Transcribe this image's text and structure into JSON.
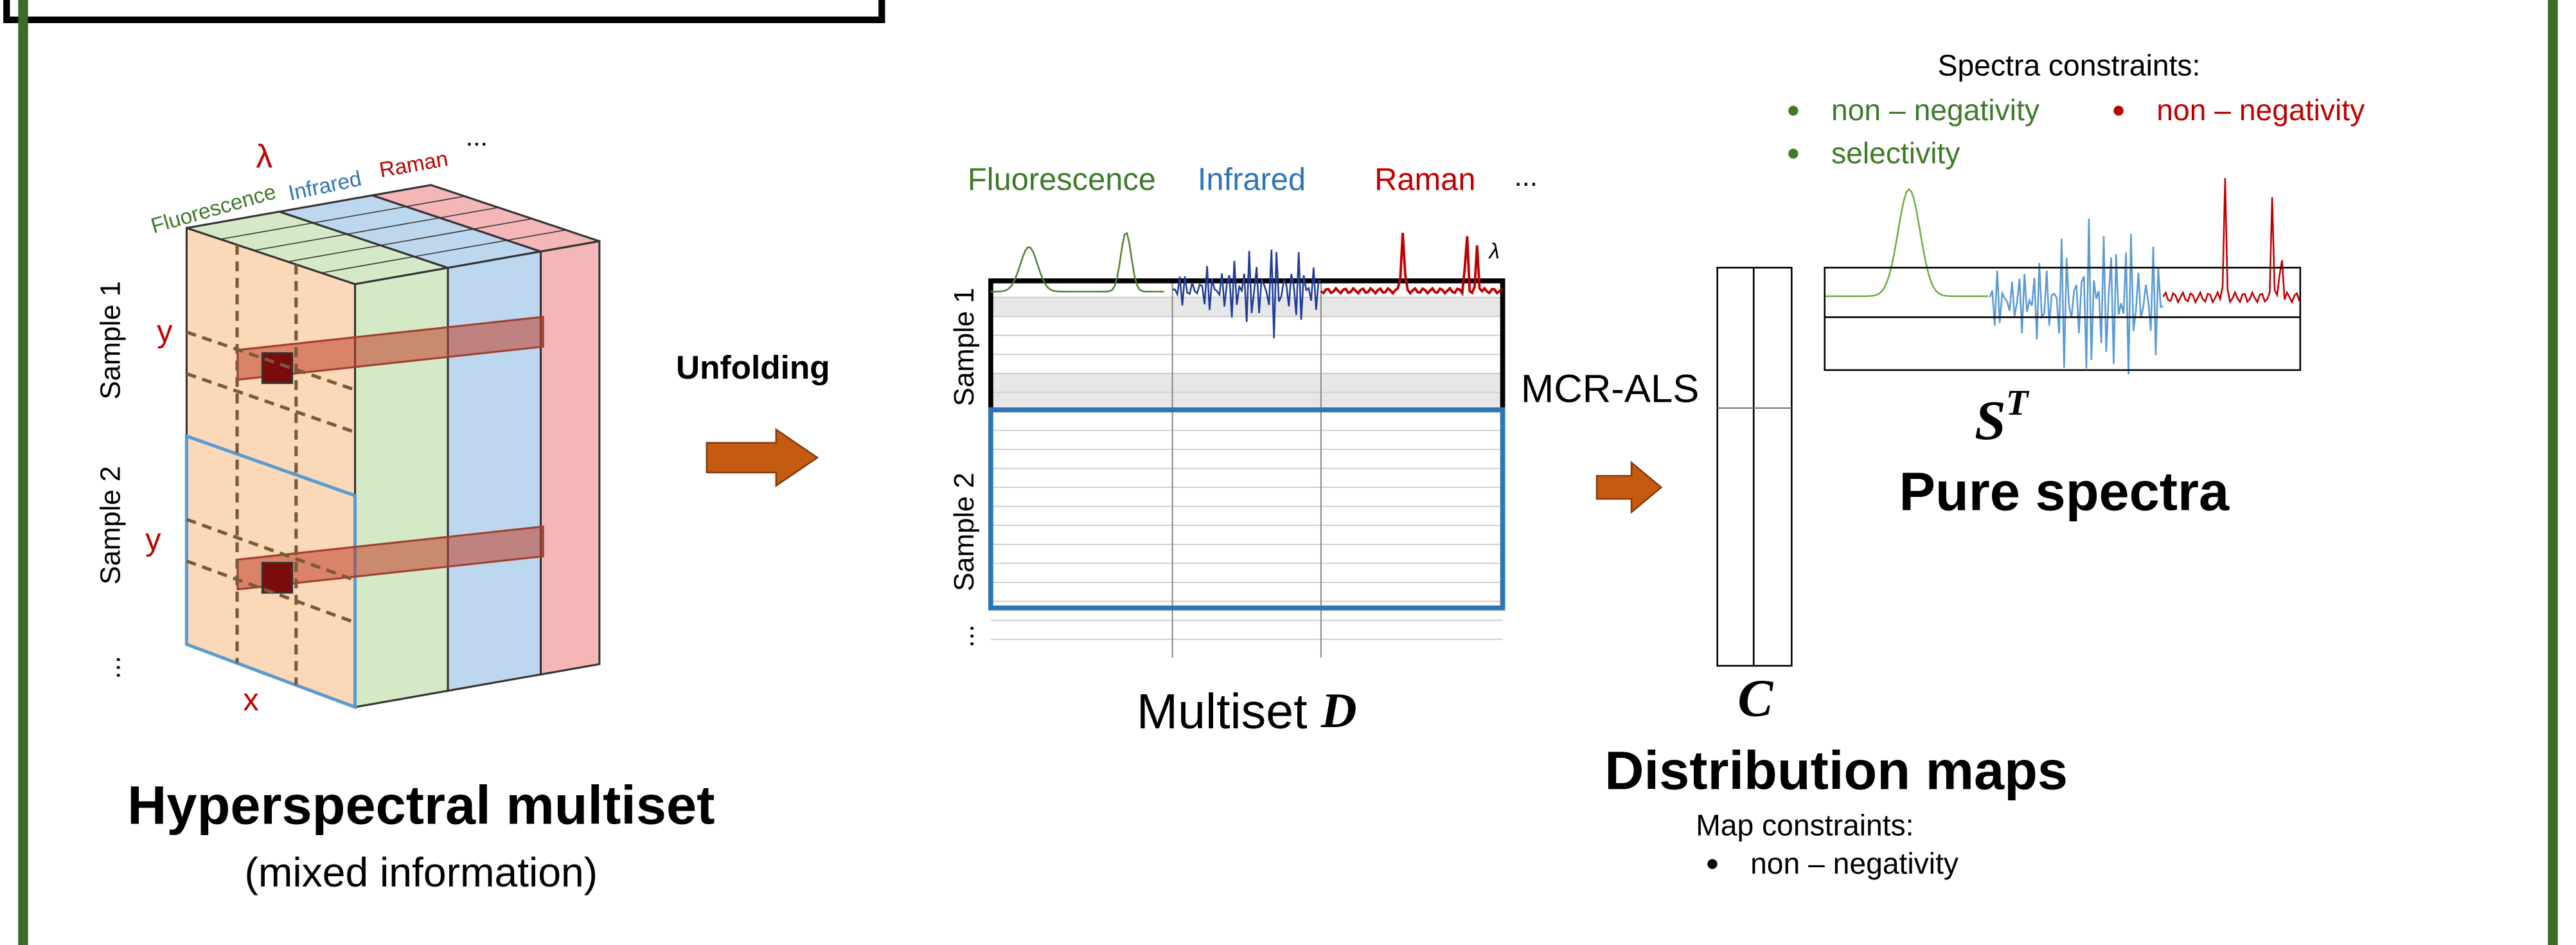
{
  "panel1": {
    "title": "Hyperspectral multiset",
    "subtitle": "(mixed information)",
    "lambda": "λ",
    "modalities": [
      "Fluorescence",
      "Infrared",
      "Raman",
      "..."
    ],
    "samples": [
      "Sample 1",
      "Sample 2",
      "..."
    ],
    "y_labels": [
      "y",
      "y"
    ],
    "x_label": "x"
  },
  "unfold_label": "Unfolding",
  "panel2": {
    "caption": "Multiset ",
    "caption_symbol": "D",
    "lambda": "λ",
    "modalities": [
      "Fluorescence",
      "Infrared",
      "Raman",
      "..."
    ],
    "samples": [
      "Sample 1",
      "Sample 2",
      "..."
    ]
  },
  "method": "MCR-ALS",
  "maps": {
    "symbol": "C",
    "title": "Distribution maps",
    "constraints_title": "Map constraints:",
    "constraints": [
      "non – negativity"
    ]
  },
  "spectra": {
    "symbol": "S",
    "superscript": "T",
    "title": "Pure spectra",
    "constraints_title": "Spectra constraints:",
    "constraints": [
      "non – negativity",
      "non – negativity",
      "selectivity"
    ]
  }
}
